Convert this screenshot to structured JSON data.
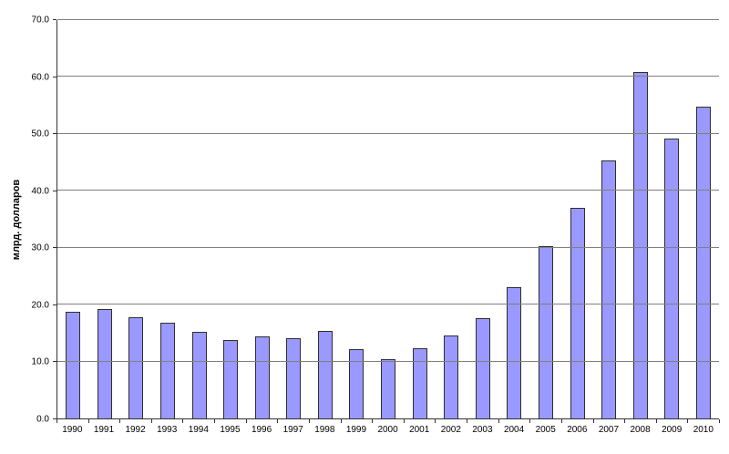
{
  "chart_data": {
    "type": "bar",
    "title": "",
    "xlabel": "",
    "ylabel": "млрд. долларов",
    "categories": [
      "1990",
      "1991",
      "1992",
      "1993",
      "1994",
      "1995",
      "1996",
      "1997",
      "1998",
      "1999",
      "2000",
      "2001",
      "2002",
      "2003",
      "2004",
      "2005",
      "2006",
      "2007",
      "2008",
      "2009",
      "2010"
    ],
    "values": [
      18.8,
      19.2,
      17.8,
      16.9,
      15.2,
      13.8,
      14.4,
      14.1,
      15.4,
      12.1,
      10.4,
      12.3,
      14.6,
      17.7,
      23.1,
      30.3,
      37.0,
      45.3,
      60.9,
      49.2,
      54.8
    ],
    "ylim": [
      0,
      70
    ],
    "yticks": [
      0,
      10,
      20,
      30,
      40,
      50,
      60,
      70
    ],
    "ytick_decimals": 1,
    "grid": true,
    "legend": false,
    "colors": {
      "bar_fill": "#9999FF",
      "bar_border": "#2e2e2e",
      "gridline": "#808080",
      "axis": "#333333",
      "background": "#FFFFFF"
    }
  }
}
